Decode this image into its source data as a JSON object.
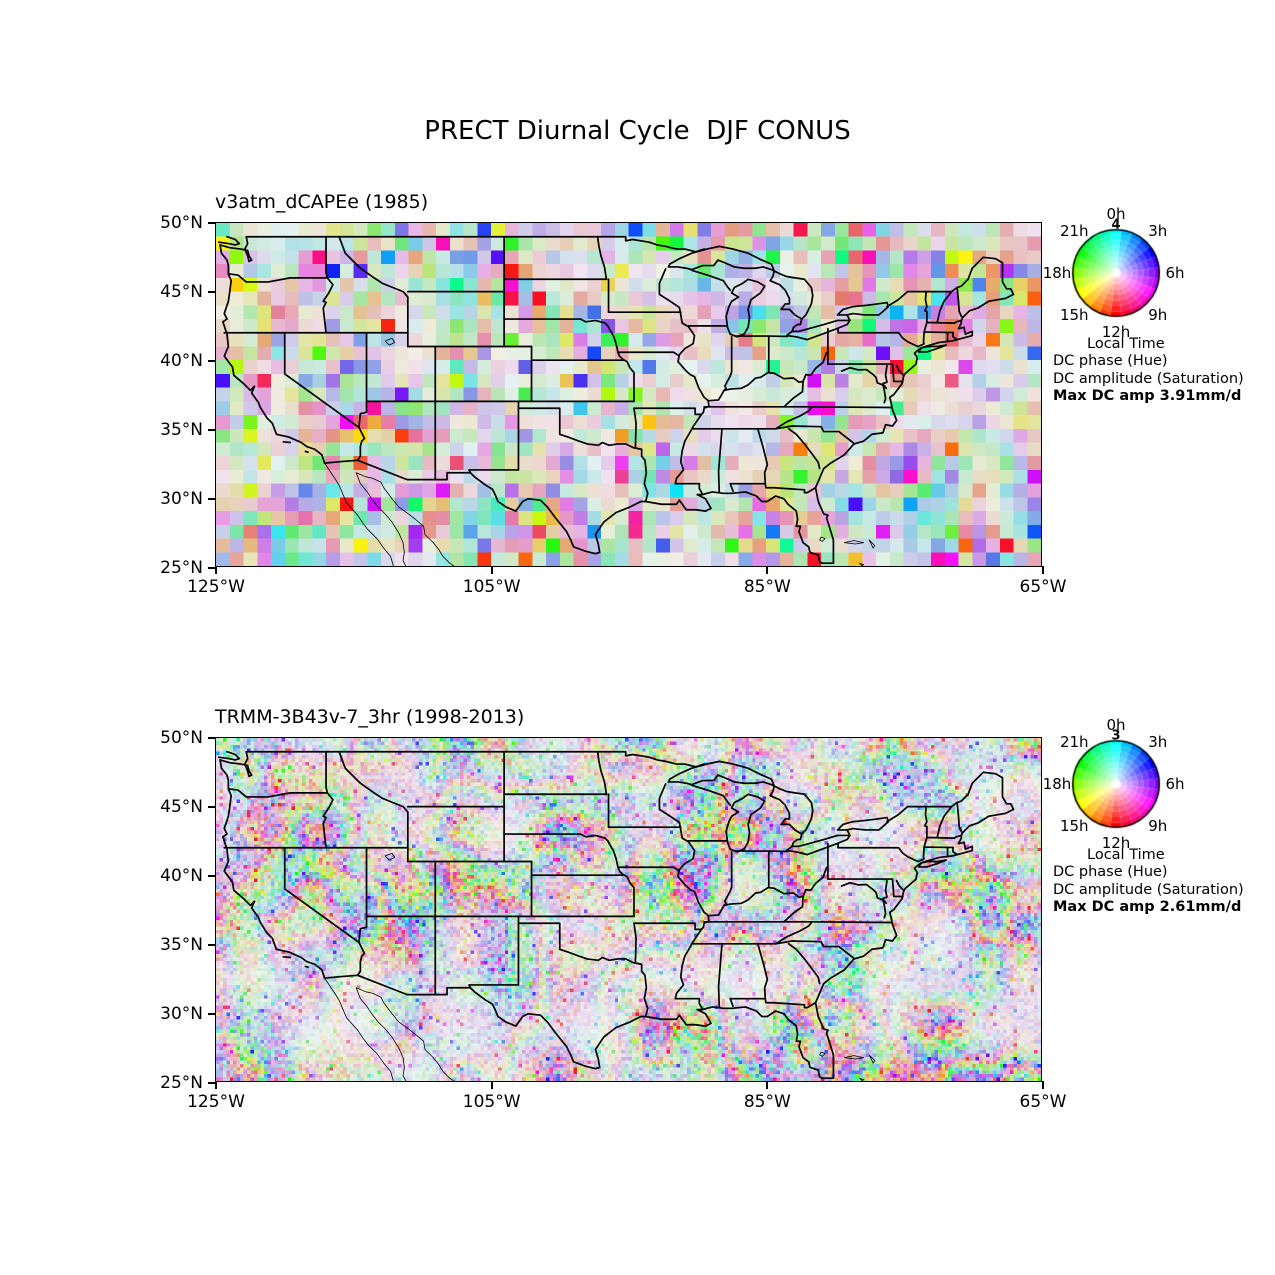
{
  "figure": {
    "title": "PRECT Diurnal Cycle  DJF CONUS"
  },
  "panels": [
    {
      "title": "v3atm_dCAPEe (1985)",
      "axes": {
        "x_ticks": [
          "125°W",
          "105°W",
          "85°W",
          "65°W"
        ],
        "y_ticks": [
          "50°N",
          "45°N",
          "40°N",
          "35°N",
          "30°N",
          "25°N"
        ]
      },
      "legend": {
        "hours": [
          "0h",
          "3h",
          "6h",
          "9h",
          "12h",
          "15h",
          "18h",
          "21h"
        ],
        "wheel_top_value": "4",
        "local_time": "Local Time",
        "phase_line": "DC phase (Hue)",
        "amplitude_line": "DC amplitude (Saturation)",
        "max_line": "Max DC amp 3.91mm/d"
      }
    },
    {
      "title": "TRMM-3B43v-7_3hr (1998-2013)",
      "axes": {
        "x_ticks": [
          "125°W",
          "105°W",
          "85°W",
          "65°W"
        ],
        "y_ticks": [
          "50°N",
          "45°N",
          "40°N",
          "35°N",
          "30°N",
          "25°N"
        ]
      },
      "legend": {
        "hours": [
          "0h",
          "3h",
          "6h",
          "9h",
          "12h",
          "15h",
          "18h",
          "21h"
        ],
        "wheel_top_value": "3",
        "local_time": "Local Time",
        "phase_line": "DC phase (Hue)",
        "amplitude_line": "DC amplitude (Saturation)",
        "max_line": "Max DC amp 2.61mm/d"
      }
    }
  ],
  "chart_data": [
    {
      "type": "heatmap",
      "title": "v3atm_dCAPEe (1985)",
      "variable": "PRECT",
      "season": "DJF",
      "region": "CONUS",
      "xlim": [
        "125°W",
        "65°W"
      ],
      "ylim": [
        "25°N",
        "50°N"
      ],
      "x_ticks": [
        "125°W",
        "105°W",
        "85°W",
        "65°W"
      ],
      "y_ticks": [
        "50°N",
        "45°N",
        "40°N",
        "35°N",
        "30°N",
        "25°N"
      ],
      "grid_resolution_deg": 1,
      "encoding": {
        "hue": "DC phase (local time of diurnal cycle maximum, 0h-24h color wheel)",
        "saturation": "DC amplitude (white = 0, full saturation = max)"
      },
      "legend_hours": [
        "0h",
        "3h",
        "6h",
        "9h",
        "12h",
        "15h",
        "18h",
        "21h"
      ],
      "wheel_radial_label": "4",
      "max_dc_amp": "3.91mm/d"
    },
    {
      "type": "heatmap",
      "title": "TRMM-3B43v-7_3hr (1998-2013)",
      "variable": "PRECT",
      "season": "DJF",
      "region": "CONUS",
      "xlim": [
        "125°W",
        "65°W"
      ],
      "ylim": [
        "25°N",
        "50°N"
      ],
      "x_ticks": [
        "125°W",
        "105°W",
        "85°W",
        "65°W"
      ],
      "y_ticks": [
        "50°N",
        "45°N",
        "40°N",
        "35°N",
        "30°N",
        "25°N"
      ],
      "grid_resolution_deg": 0.25,
      "encoding": {
        "hue": "DC phase (local time of diurnal cycle maximum, 0h-24h color wheel)",
        "saturation": "DC amplitude (white = 0, full saturation = max)"
      },
      "legend_hours": [
        "0h",
        "3h",
        "6h",
        "9h",
        "12h",
        "15h",
        "18h",
        "21h"
      ],
      "wheel_radial_label": "3",
      "max_dc_amp": "2.61mm/d"
    }
  ]
}
